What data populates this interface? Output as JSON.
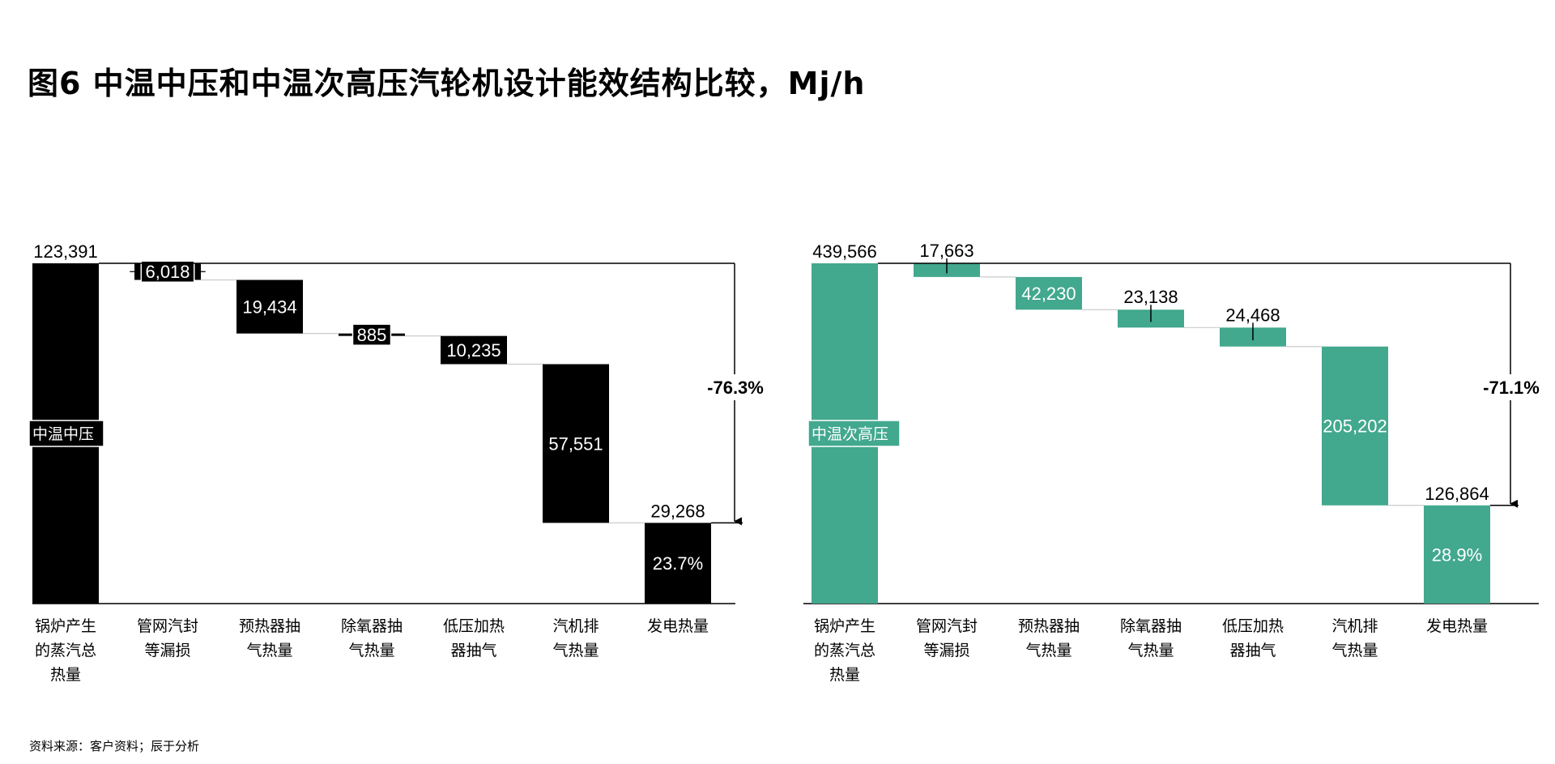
{
  "title": "图6 中温中压和中温次高压汽轮机设计能效结构比较，Mj/h",
  "source": "资料来源：客户资料；辰于分析",
  "chart_data": [
    {
      "type": "waterfall",
      "color": "#000000",
      "text_color": "#ffffff",
      "series_label": "中温中压",
      "categories": [
        [
          "锅炉产生",
          "的蒸汽总",
          "热量"
        ],
        [
          "管网汽封",
          "等漏损"
        ],
        [
          "预热器抽",
          "气热量"
        ],
        [
          "除氧器抽",
          "气热量"
        ],
        [
          "低压加热",
          "器抽气"
        ],
        [
          "汽机排",
          "气热量"
        ],
        [
          "发电热量"
        ]
      ],
      "values": [
        123391,
        6018,
        19434,
        885,
        10235,
        57551,
        29268
      ],
      "labels": [
        "123,391",
        "6,018",
        "19,434",
        "885",
        "10,235",
        "57,551",
        "29,268"
      ],
      "final_share": "23.7%",
      "change": "-76.3%"
    },
    {
      "type": "waterfall",
      "color": "#42a88e",
      "text_color": "#ffffff",
      "series_label": "中温次高压",
      "categories": [
        [
          "锅炉产生",
          "的蒸汽总",
          "热量"
        ],
        [
          "管网汽封",
          "等漏损"
        ],
        [
          "预热器抽",
          "气热量"
        ],
        [
          "除氧器抽",
          "气热量"
        ],
        [
          "低压加热",
          "器抽气"
        ],
        [
          "汽机排",
          "气热量"
        ],
        [
          "发电热量"
        ]
      ],
      "values": [
        439566,
        17663,
        42230,
        23138,
        24468,
        205202,
        126864
      ],
      "labels": [
        "439,566",
        "17,663",
        "42,230",
        "23,138",
        "24,468",
        "205,202",
        "126,864"
      ],
      "final_share": "28.9%",
      "change": "-71.1%"
    }
  ]
}
